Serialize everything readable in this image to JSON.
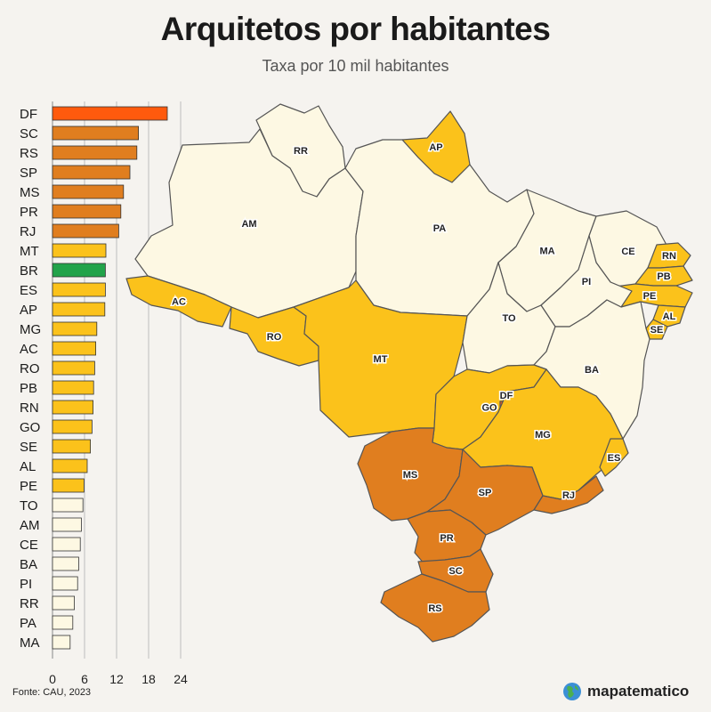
{
  "header": {
    "title": "Arquitetos por habitantes",
    "subtitle": "Taxa por 10 mil habitantes"
  },
  "footer": {
    "source": "Fonte: CAU, 2023",
    "brand": "mapatematico"
  },
  "colors": {
    "top": "#ff5a0d",
    "high": "#e07e1f",
    "mid": "#fbc21b",
    "low": "#fdf8e3",
    "national": "#22a34a",
    "grid": "#bdbdbd"
  },
  "chart_data": {
    "type": "bar",
    "orientation": "horizontal",
    "categories": [
      "DF",
      "SC",
      "RS",
      "SP",
      "MS",
      "PR",
      "RJ",
      "MT",
      "BR",
      "ES",
      "AP",
      "MG",
      "AC",
      "RO",
      "PB",
      "RN",
      "GO",
      "SE",
      "AL",
      "PE",
      "TO",
      "AM",
      "CE",
      "BA",
      "PI",
      "RR",
      "PA",
      "MA"
    ],
    "values": [
      21.5,
      16.1,
      15.8,
      14.5,
      13.3,
      12.8,
      12.4,
      10.0,
      9.9,
      9.9,
      9.8,
      8.3,
      8.1,
      7.9,
      7.7,
      7.6,
      7.4,
      7.1,
      6.5,
      5.9,
      5.7,
      5.4,
      5.2,
      4.9,
      4.7,
      4.1,
      3.8,
      3.3
    ],
    "tiers": [
      "top",
      "high",
      "high",
      "high",
      "high",
      "high",
      "high",
      "mid",
      "national",
      "mid",
      "mid",
      "mid",
      "mid",
      "mid",
      "mid",
      "mid",
      "mid",
      "mid",
      "mid",
      "mid",
      "low",
      "low",
      "low",
      "low",
      "low",
      "low",
      "low",
      "low"
    ],
    "xticks": [
      0,
      6,
      12,
      18,
      24
    ],
    "xlim": [
      0,
      24
    ],
    "grid": true
  },
  "map": {
    "states": [
      {
        "code": "RR",
        "tier": "low"
      },
      {
        "code": "AP",
        "tier": "mid"
      },
      {
        "code": "AM",
        "tier": "low"
      },
      {
        "code": "PA",
        "tier": "low"
      },
      {
        "code": "MA",
        "tier": "low"
      },
      {
        "code": "CE",
        "tier": "low"
      },
      {
        "code": "RN",
        "tier": "mid"
      },
      {
        "code": "PB",
        "tier": "mid"
      },
      {
        "code": "PE",
        "tier": "mid"
      },
      {
        "code": "AL",
        "tier": "mid"
      },
      {
        "code": "SE",
        "tier": "mid"
      },
      {
        "code": "PI",
        "tier": "low"
      },
      {
        "code": "AC",
        "tier": "mid"
      },
      {
        "code": "RO",
        "tier": "mid"
      },
      {
        "code": "MT",
        "tier": "mid"
      },
      {
        "code": "TO",
        "tier": "low"
      },
      {
        "code": "BA",
        "tier": "low"
      },
      {
        "code": "GO",
        "tier": "mid"
      },
      {
        "code": "DF",
        "tier": "top"
      },
      {
        "code": "MG",
        "tier": "mid"
      },
      {
        "code": "ES",
        "tier": "mid"
      },
      {
        "code": "MS",
        "tier": "high"
      },
      {
        "code": "SP",
        "tier": "high"
      },
      {
        "code": "RJ",
        "tier": "high"
      },
      {
        "code": "PR",
        "tier": "high"
      },
      {
        "code": "SC",
        "tier": "high"
      },
      {
        "code": "RS",
        "tier": "high"
      }
    ]
  }
}
